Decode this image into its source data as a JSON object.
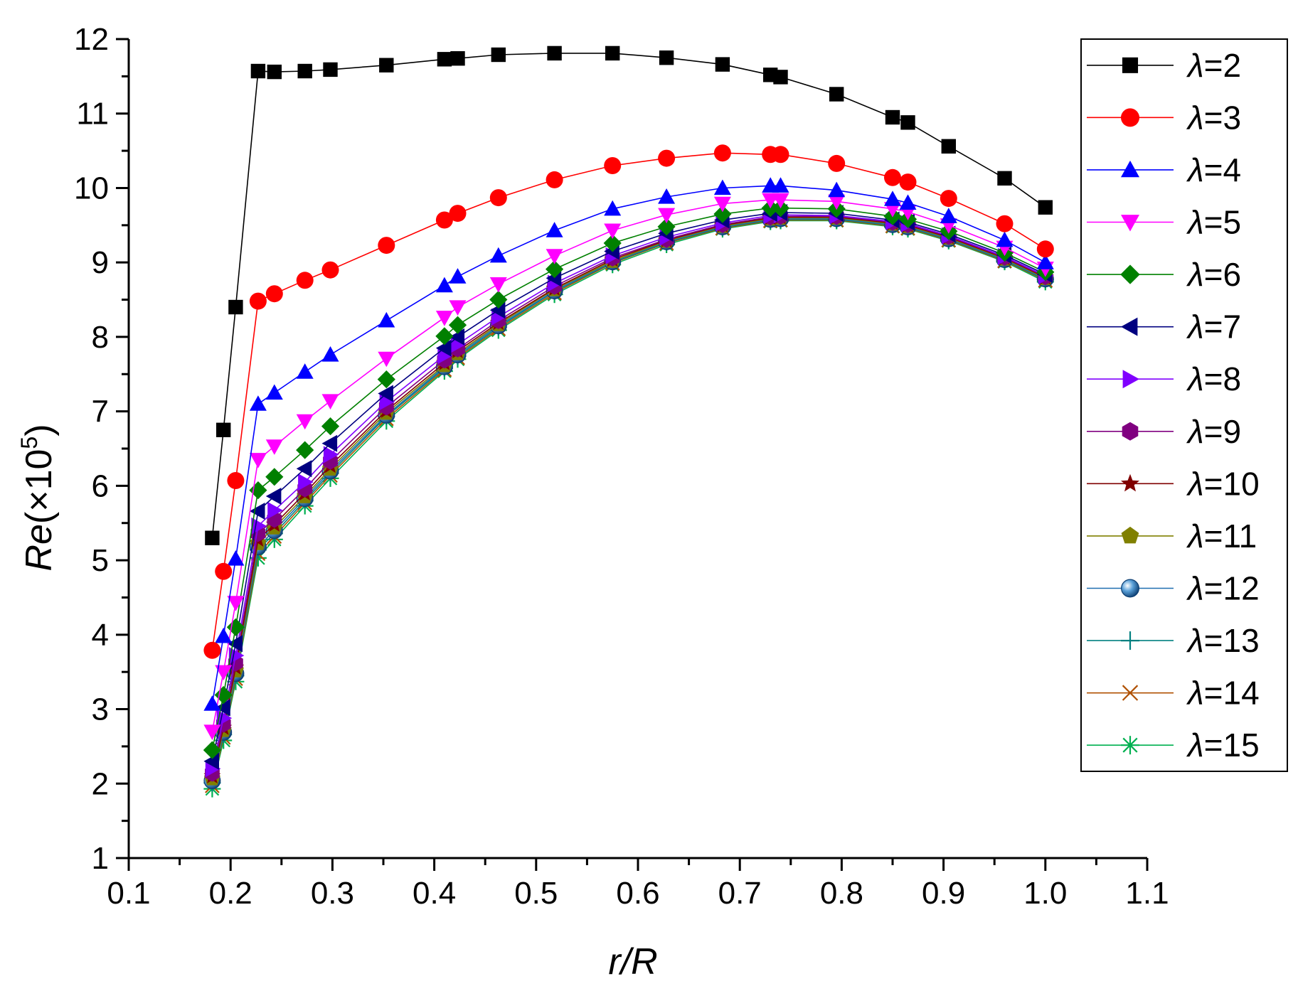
{
  "chart_data": {
    "type": "line",
    "title": "",
    "xlabel": "r/R",
    "ylabel": "Re(×10^5)",
    "ylabel_base": "Re(×10",
    "ylabel_exp": "5",
    "ylabel_close": ")",
    "xlim": [
      0.1,
      1.1
    ],
    "ylim": [
      1,
      12
    ],
    "xticks": [
      "0.1",
      "0.2",
      "0.3",
      "0.4",
      "0.5",
      "0.6",
      "0.7",
      "0.8",
      "0.9",
      "1.0",
      "1.1"
    ],
    "yticks": [
      "1",
      "2",
      "3",
      "4",
      "5",
      "6",
      "7",
      "8",
      "9",
      "10",
      "11",
      "12"
    ],
    "grid": false,
    "legend_position": "right",
    "x": [
      0.182,
      0.193,
      0.205,
      0.227,
      0.243,
      0.273,
      0.298,
      0.353,
      0.41,
      0.423,
      0.463,
      0.518,
      0.575,
      0.628,
      0.683,
      0.73,
      0.74,
      0.795,
      0.85,
      0.865,
      0.905,
      0.96,
      1.0
    ],
    "series": [
      {
        "name": "λ=2",
        "greek": "λ",
        "suffix": "=2",
        "color": "#000000",
        "marker": "square",
        "values": [
          5.3,
          6.75,
          8.4,
          11.57,
          11.56,
          11.57,
          11.59,
          11.65,
          11.73,
          11.74,
          11.79,
          11.81,
          11.81,
          11.75,
          11.66,
          11.52,
          11.49,
          11.26,
          10.95,
          10.88,
          10.56,
          10.13,
          9.74
        ]
      },
      {
        "name": "λ=3",
        "greek": "λ",
        "suffix": "=3",
        "color": "#ff0000",
        "marker": "circle",
        "values": [
          3.79,
          4.85,
          6.07,
          8.48,
          8.58,
          8.76,
          8.9,
          9.23,
          9.57,
          9.66,
          9.87,
          10.11,
          10.3,
          10.4,
          10.47,
          10.45,
          10.45,
          10.33,
          10.14,
          10.08,
          9.86,
          9.52,
          9.18
        ]
      },
      {
        "name": "λ=4",
        "greek": "λ",
        "suffix": "=4",
        "color": "#0000ff",
        "marker": "triangle-up",
        "values": [
          3.07,
          3.98,
          5.02,
          7.1,
          7.25,
          7.53,
          7.76,
          8.22,
          8.69,
          8.81,
          9.09,
          9.43,
          9.72,
          9.88,
          10.0,
          10.03,
          10.03,
          9.97,
          9.85,
          9.8,
          9.62,
          9.3,
          9.0
        ]
      },
      {
        "name": "λ=5",
        "greek": "λ",
        "suffix": "=5",
        "color": "#ff00ff",
        "marker": "triangle-down",
        "values": [
          2.7,
          3.5,
          4.43,
          6.35,
          6.53,
          6.87,
          7.14,
          7.71,
          8.26,
          8.4,
          8.71,
          9.09,
          9.43,
          9.64,
          9.79,
          9.84,
          9.84,
          9.82,
          9.72,
          9.68,
          9.5,
          9.2,
          8.92
        ]
      },
      {
        "name": "λ=6",
        "greek": "λ",
        "suffix": "=6",
        "color": "#008000",
        "marker": "diamond",
        "values": [
          2.45,
          3.19,
          4.1,
          5.94,
          6.12,
          6.48,
          6.8,
          7.43,
          8.01,
          8.16,
          8.5,
          8.91,
          9.26,
          9.48,
          9.65,
          9.73,
          9.73,
          9.72,
          9.62,
          9.58,
          9.42,
          9.13,
          8.87
        ]
      },
      {
        "name": "λ=7",
        "greek": "λ",
        "suffix": "=7",
        "color": "#000080",
        "marker": "triangle-left",
        "values": [
          2.3,
          3.02,
          3.88,
          5.66,
          5.86,
          6.23,
          6.57,
          7.24,
          7.85,
          8.0,
          8.36,
          8.79,
          9.15,
          9.39,
          9.57,
          9.66,
          9.67,
          9.66,
          9.57,
          9.54,
          9.38,
          9.1,
          8.84
        ]
      },
      {
        "name": "λ=8",
        "greek": "λ",
        "suffix": "=8",
        "color": "#8000ff",
        "marker": "triangle-right",
        "values": [
          2.2,
          2.88,
          3.72,
          5.46,
          5.67,
          6.05,
          6.42,
          7.13,
          7.75,
          7.9,
          8.27,
          8.72,
          9.09,
          9.34,
          9.53,
          9.63,
          9.64,
          9.63,
          9.55,
          9.52,
          9.36,
          9.08,
          8.82
        ]
      },
      {
        "name": "λ=9",
        "greek": "λ",
        "suffix": "=9",
        "color": "#800080",
        "marker": "hexagon",
        "values": [
          2.14,
          2.8,
          3.62,
          5.36,
          5.55,
          5.96,
          6.33,
          7.06,
          7.69,
          7.84,
          8.22,
          8.68,
          9.06,
          9.31,
          9.51,
          9.61,
          9.62,
          9.62,
          9.54,
          9.51,
          9.35,
          9.07,
          8.81
        ]
      },
      {
        "name": "λ=10",
        "greek": "λ",
        "suffix": "=10",
        "color": "#800000",
        "marker": "star",
        "values": [
          2.1,
          2.75,
          3.56,
          5.28,
          5.48,
          5.9,
          6.27,
          7.01,
          7.65,
          7.81,
          8.19,
          8.65,
          9.04,
          9.3,
          9.5,
          9.6,
          9.61,
          9.61,
          9.53,
          9.5,
          9.34,
          9.06,
          8.8
        ]
      },
      {
        "name": "λ=11",
        "greek": "λ",
        "suffix": "=11",
        "color": "#808000",
        "marker": "pentagon",
        "values": [
          2.07,
          2.72,
          3.52,
          5.23,
          5.44,
          5.86,
          6.23,
          6.98,
          7.62,
          7.78,
          8.17,
          8.64,
          9.02,
          9.29,
          9.49,
          9.59,
          9.6,
          9.6,
          9.52,
          9.49,
          9.33,
          9.05,
          8.79
        ]
      },
      {
        "name": "λ=12",
        "greek": "λ",
        "suffix": "=12",
        "color": "#1f6faf",
        "marker": "ball",
        "values": [
          2.04,
          2.69,
          3.48,
          5.18,
          5.4,
          5.83,
          6.2,
          6.95,
          7.6,
          7.76,
          8.15,
          8.62,
          9.01,
          9.28,
          9.48,
          9.58,
          9.59,
          9.59,
          9.51,
          9.48,
          9.32,
          9.04,
          8.78
        ]
      },
      {
        "name": "λ=13",
        "greek": "λ",
        "suffix": "=13",
        "color": "#008080",
        "marker": "plus",
        "values": [
          2.01,
          2.66,
          3.45,
          5.14,
          5.36,
          5.8,
          6.17,
          6.93,
          7.58,
          7.74,
          8.13,
          8.61,
          9.0,
          9.27,
          9.47,
          9.57,
          9.58,
          9.58,
          9.5,
          9.47,
          9.31,
          9.03,
          8.77
        ]
      },
      {
        "name": "λ=14",
        "greek": "λ",
        "suffix": "=14",
        "color": "#b05000",
        "marker": "x",
        "values": [
          1.97,
          2.62,
          3.41,
          5.09,
          5.32,
          5.77,
          6.14,
          6.9,
          7.56,
          7.72,
          8.11,
          8.59,
          8.99,
          9.26,
          9.46,
          9.56,
          9.57,
          9.57,
          9.49,
          9.46,
          9.3,
          9.02,
          8.76
        ]
      },
      {
        "name": "λ=15",
        "greek": "λ",
        "suffix": "=15",
        "color": "#00b050",
        "marker": "asterisk",
        "values": [
          1.93,
          2.58,
          3.37,
          5.03,
          5.28,
          5.73,
          6.1,
          6.87,
          7.54,
          7.7,
          8.09,
          8.57,
          8.97,
          9.24,
          9.45,
          9.55,
          9.56,
          9.56,
          9.48,
          9.45,
          9.29,
          9.01,
          8.74
        ]
      }
    ]
  }
}
